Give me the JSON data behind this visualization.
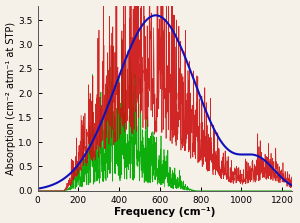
{
  "xlim": [
    0,
    1250
  ],
  "ylim": [
    0,
    3.8
  ],
  "xlabel": "Frequency (cm⁻¹)",
  "ylabel": "Absorption (cm⁻² atm⁻¹ at STP)",
  "blue_color": "#1111bb",
  "red_color": "#cc1111",
  "green_color": "#00aa00",
  "blue_lw": 1.5,
  "red_lw": 0.5,
  "green_lw": 0.5,
  "label_fontsize": 7.5,
  "tick_fontsize": 6.5,
  "background_color": "#f5f0e8",
  "plot_bg": "#f5f0e8",
  "xticks": [
    0,
    200,
    400,
    600,
    800,
    1000,
    1200
  ],
  "yticks": [
    0.0,
    0.5,
    1.0,
    1.5,
    2.0,
    2.5,
    3.0,
    3.5
  ]
}
